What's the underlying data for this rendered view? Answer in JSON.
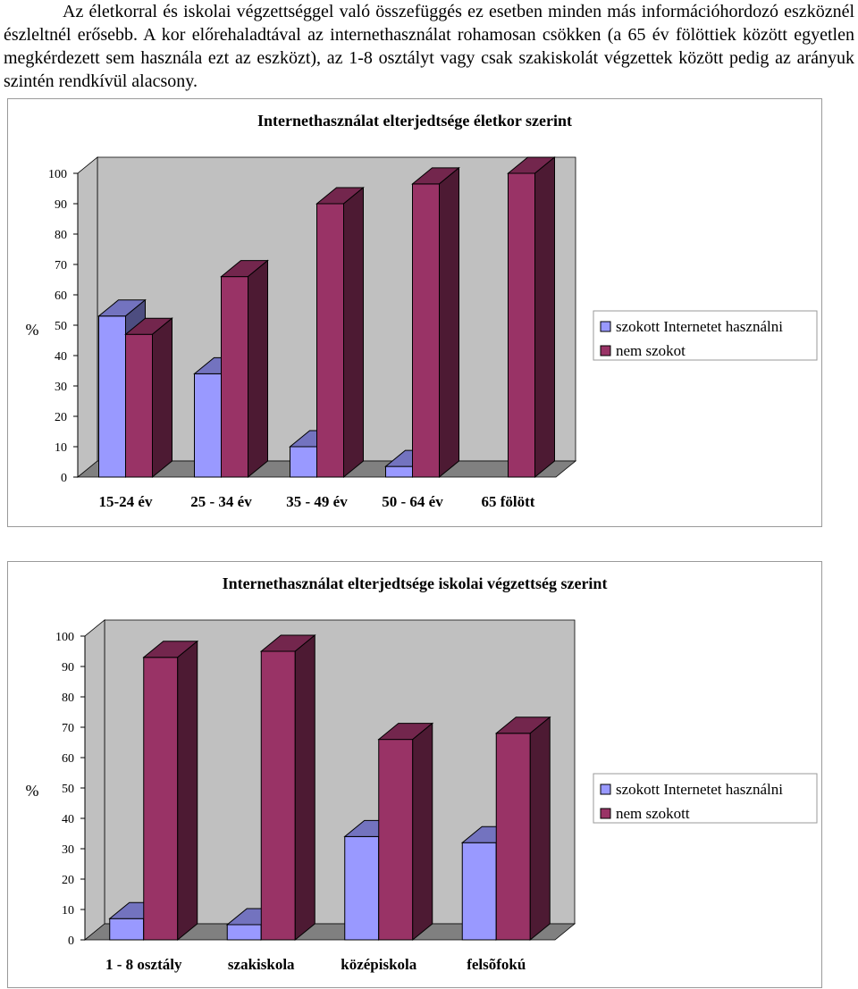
{
  "intro_text": "Az életkorral és iskolai végzettséggel való összefüggés ez esetben minden más információhordozó eszköznél észleltnél erősebb. A kor előrehaladtával az internethasználat rohamosan csökken (a 65 év fölöttiek között egyetlen megkérdezett sem használa ezt az eszközt), az 1-8 osztályt vagy csak szakiskolát végzettek között pedig az arányuk szintén rendkívül alacsony.",
  "colors": {
    "series1": "#9999ff",
    "series2": "#993366",
    "wall": "#c0c0c0",
    "floor": "#808080"
  },
  "chart_data": [
    {
      "type": "bar",
      "title": "Internethasználat elterjedtsége életkor szerint",
      "ylabel": "%",
      "xlabel": "",
      "ylim": [
        0,
        100
      ],
      "yticks": [
        "0",
        "10",
        "20",
        "30",
        "40",
        "50",
        "60",
        "70",
        "80",
        "90",
        "100"
      ],
      "categories": [
        "15-24 év",
        "25 - 34 év",
        "35 - 49 év",
        "50 - 64 év",
        "65 fölött"
      ],
      "series": [
        {
          "name": "szokott Internetet használni",
          "values": [
            53,
            34,
            10,
            3.5,
            0
          ]
        },
        {
          "name": "nem szokot",
          "values": [
            47,
            66,
            90,
            96.5,
            100
          ]
        }
      ],
      "legend_position": "right",
      "grid": false
    },
    {
      "type": "bar",
      "title": "Internethasználat elterjedtsége iskolai végzettség szerint",
      "ylabel": "%",
      "xlabel": "",
      "ylim": [
        0,
        100
      ],
      "yticks": [
        "0",
        "10",
        "20",
        "30",
        "40",
        "50",
        "60",
        "70",
        "80",
        "90",
        "100"
      ],
      "categories": [
        "1 - 8 osztály",
        "szakiskola",
        "középiskola",
        "felsõfokú"
      ],
      "series": [
        {
          "name": "szokott Internetet használni",
          "values": [
            7,
            5,
            34,
            32
          ]
        },
        {
          "name": "nem szokott",
          "values": [
            93,
            95,
            66,
            68
          ]
        }
      ],
      "legend_position": "right",
      "grid": false
    }
  ]
}
